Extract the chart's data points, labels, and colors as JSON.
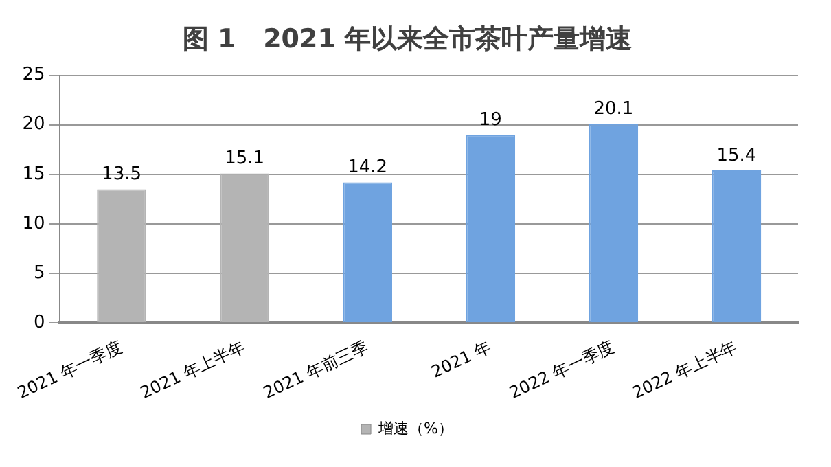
{
  "chart_data": {
    "type": "bar",
    "title": "图 1   2021 年以来全市茶叶产量增速",
    "categories": [
      "2021 年一季度",
      "2021 年上半年",
      "2021 年前三季",
      "2021 年",
      "2022 年一季度",
      "2022 年上半年"
    ],
    "series": [
      {
        "name": "增速（%）",
        "values": [
          13.5,
          15.1,
          14.2,
          19,
          20.1,
          15.4
        ],
        "colors": [
          "#b4b4b4",
          "#b4b4b4",
          "#6fa3e0",
          "#6fa3e0",
          "#6fa3e0",
          "#6fa3e0"
        ]
      }
    ],
    "ylim": [
      0,
      25
    ],
    "yticks": [
      0,
      5,
      10,
      15,
      20,
      25
    ],
    "grid": "y",
    "legend": "bottom",
    "data_labels": true
  }
}
